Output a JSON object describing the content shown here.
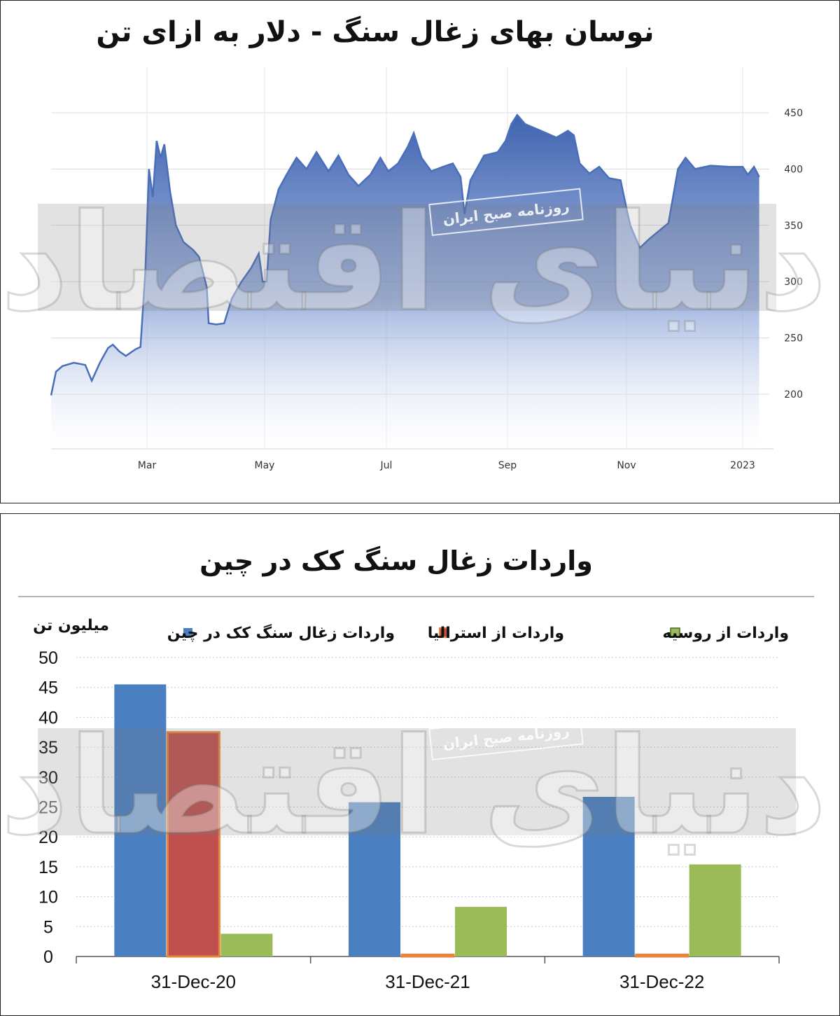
{
  "chart_data": [
    {
      "type": "area",
      "title": "نوسان بهای زغال سنگ - دلار به ازای تن",
      "x_ticks": [
        "Mar",
        "May",
        "Jul",
        "Sep",
        "Nov",
        "2023"
      ],
      "y_ticks": [
        200,
        250,
        300,
        350,
        400,
        450
      ],
      "ylim": [
        150,
        460
      ],
      "grid": true,
      "y_axis_side": "right",
      "color": "#4a6fba",
      "x_domain": [
        "2022-01-01",
        "2023-01-20"
      ],
      "series": [
        {
          "points": [
            [
              "2022-01-01",
              199
            ],
            [
              "2022-01-04",
              220
            ],
            [
              "2022-01-08",
              225
            ],
            [
              "2022-01-15",
              228
            ],
            [
              "2022-01-22",
              226
            ],
            [
              "2022-01-26",
              212
            ],
            [
              "2022-01-31",
              228
            ],
            [
              "2022-02-05",
              241
            ],
            [
              "2022-02-08",
              244
            ],
            [
              "2022-02-12",
              238
            ],
            [
              "2022-02-16",
              234
            ],
            [
              "2022-02-22",
              240
            ],
            [
              "2022-02-25",
              242
            ],
            [
              "2022-02-28",
              310
            ],
            [
              "2022-03-02",
              400
            ],
            [
              "2022-03-04",
              375
            ],
            [
              "2022-03-06",
              425
            ],
            [
              "2022-03-08",
              410
            ],
            [
              "2022-03-10",
              422
            ],
            [
              "2022-03-13",
              380
            ],
            [
              "2022-03-16",
              350
            ],
            [
              "2022-03-20",
              335
            ],
            [
              "2022-03-25",
              328
            ],
            [
              "2022-03-28",
              322
            ],
            [
              "2022-04-01",
              295
            ],
            [
              "2022-04-02",
              263
            ],
            [
              "2022-04-06",
              262
            ],
            [
              "2022-04-10",
              263
            ],
            [
              "2022-04-14",
              285
            ],
            [
              "2022-04-19",
              300
            ],
            [
              "2022-04-24",
              312
            ],
            [
              "2022-04-28",
              325
            ],
            [
              "2022-04-30",
              300
            ],
            [
              "2022-05-02",
              300
            ],
            [
              "2022-05-04",
              355
            ],
            [
              "2022-05-08",
              382
            ],
            [
              "2022-05-12",
              395
            ],
            [
              "2022-05-17",
              410
            ],
            [
              "2022-05-22",
              400
            ],
            [
              "2022-05-27",
              415
            ],
            [
              "2022-06-02",
              398
            ],
            [
              "2022-06-07",
              412
            ],
            [
              "2022-06-12",
              395
            ],
            [
              "2022-06-17",
              385
            ],
            [
              "2022-06-23",
              395
            ],
            [
              "2022-06-28",
              410
            ],
            [
              "2022-07-02",
              398
            ],
            [
              "2022-07-07",
              405
            ],
            [
              "2022-07-12",
              420
            ],
            [
              "2022-07-15",
              432
            ],
            [
              "2022-07-19",
              410
            ],
            [
              "2022-07-24",
              398
            ],
            [
              "2022-07-30",
              402
            ],
            [
              "2022-08-04",
              405
            ],
            [
              "2022-08-08",
              393
            ],
            [
              "2022-08-10",
              360
            ],
            [
              "2022-08-13",
              390
            ],
            [
              "2022-08-20",
              412
            ],
            [
              "2022-08-27",
              415
            ],
            [
              "2022-08-31",
              425
            ],
            [
              "2022-09-03",
              440
            ],
            [
              "2022-09-06",
              448
            ],
            [
              "2022-09-10",
              440
            ],
            [
              "2022-09-18",
              434
            ],
            [
              "2022-09-26",
              428
            ],
            [
              "2022-10-02",
              434
            ],
            [
              "2022-10-05",
              430
            ],
            [
              "2022-10-08",
              405
            ],
            [
              "2022-10-13",
              396
            ],
            [
              "2022-10-18",
              402
            ],
            [
              "2022-10-23",
              392
            ],
            [
              "2022-10-29",
              390
            ],
            [
              "2022-11-01",
              365
            ],
            [
              "2022-11-03",
              350
            ],
            [
              "2022-11-08",
              330
            ],
            [
              "2022-11-13",
              338
            ],
            [
              "2022-11-18",
              345
            ],
            [
              "2022-11-23",
              352
            ],
            [
              "2022-11-28",
              400
            ],
            [
              "2022-12-02",
              410
            ],
            [
              "2022-12-07",
              400
            ],
            [
              "2022-12-15",
              403
            ],
            [
              "2022-12-25",
              402
            ],
            [
              "2023-01-01",
              402
            ],
            [
              "2023-01-06",
              395
            ],
            [
              "2023-01-12",
              402
            ],
            [
              "2023-01-17",
              393
            ]
          ]
        }
      ]
    },
    {
      "type": "bar",
      "title": "واردات زغال سنگ کک در چین",
      "ylabel": "میلیون تن",
      "categories": [
        "31-Dec-20",
        "31-Dec-21",
        "31-Dec-22"
      ],
      "ylim": [
        0,
        50
      ],
      "y_ticks": [
        0,
        5,
        10,
        15,
        20,
        25,
        30,
        35,
        40,
        45,
        50
      ],
      "grid": true,
      "legend_position": "top",
      "series": [
        {
          "name": "واردات زغال سنگ کک در چین",
          "color": "#4a7fc1",
          "values": [
            45.5,
            25.8,
            26.7
          ]
        },
        {
          "name": "واردات از استرالیا",
          "color": "#c0504d",
          "values": [
            37.5,
            0.3,
            0.3
          ]
        },
        {
          "name": "واردات از روسیه",
          "color": "#9bbb59",
          "values": [
            3.8,
            8.3,
            15.4
          ]
        }
      ]
    }
  ],
  "watermark": {
    "newspaper": "روزنامه صبح ایران",
    "brand": "دنیای اقتصاد"
  }
}
